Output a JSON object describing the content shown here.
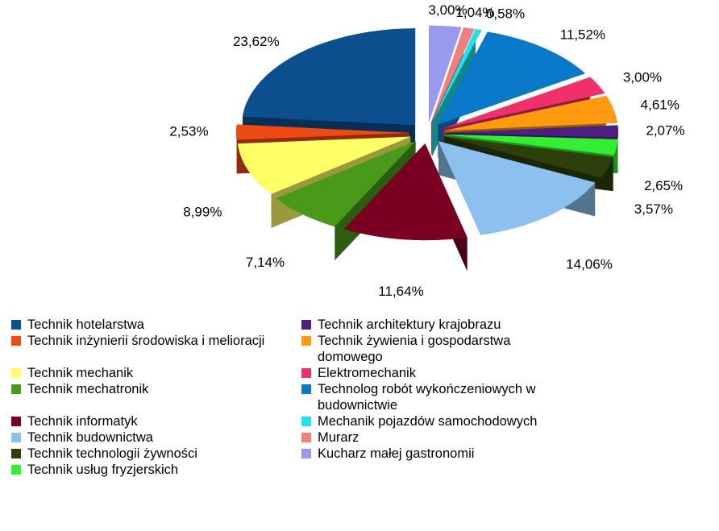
{
  "chart_data": {
    "type": "pie",
    "categories": [
      "Technik hotelarstwa",
      "Technik inżynierii środowiska i melioracji",
      "Technik mechanik",
      "Technik mechatronik",
      "Technik informatyk",
      "Technik budownictwa",
      "Technik technologii żywności",
      "Technik usług fryzjerskich",
      "Technik architektury krajobrazu",
      "Technik żywienia i gospodarstwa domowego",
      "Elektromechanik",
      "Technolog robót wykończeniowych w budownictwie",
      "Mechanik pojazdów samochodowych",
      "Murarz",
      "Kucharz małej gastronomii"
    ],
    "values": [
      23.62,
      2.53,
      8.99,
      7.14,
      11.64,
      14.06,
      3.57,
      2.65,
      2.07,
      4.61,
      3.0,
      11.52,
      0.58,
      1.04,
      3.0
    ],
    "value_labels": [
      "23,62%",
      "2,53%",
      "8,99%",
      "7,14%",
      "11,64%",
      "14,06%",
      "3,57%",
      "2,65%",
      "2,07%",
      "4,61%",
      "3,00%",
      "11,52%",
      "0,58%",
      "1,04%",
      "3,00%"
    ],
    "colors": [
      "#0b4f8f",
      "#f04a14",
      "#ffff66",
      "#4a9a1a",
      "#7a0022",
      "#8cc0ee",
      "#2d3f0a",
      "#33ee33",
      "#4b2080",
      "#ff9a10",
      "#f0306a",
      "#0a78c8",
      "#20e0e8",
      "#f08080",
      "#9999ee"
    ],
    "legend": "bottom"
  }
}
